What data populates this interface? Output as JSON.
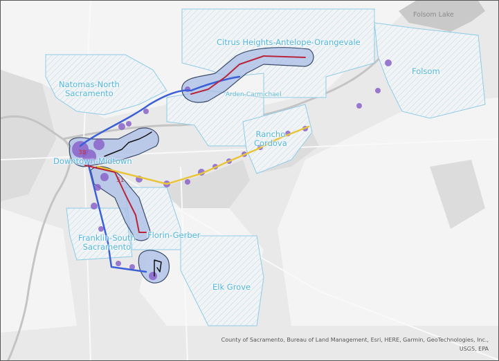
{
  "map": {
    "water_label": "Folsom Lake",
    "areas": [
      {
        "id": "citrus-heights",
        "label": "Citrus Heights-Antelope-Orangevale"
      },
      {
        "id": "natomas",
        "label": "Natomas-North\nSacramento"
      },
      {
        "id": "arden",
        "label": "Arden-Carmichael"
      },
      {
        "id": "folsom",
        "label": "Folsom"
      },
      {
        "id": "rancho",
        "label": "Rancho\nCordova"
      },
      {
        "id": "downtown",
        "label": "Downtown-Midtown"
      },
      {
        "id": "franklin",
        "label": "Franklin-South\nSacramento"
      },
      {
        "id": "florin",
        "label": "Florin-Gerber"
      },
      {
        "id": "elk-grove",
        "label": "Elk Grove"
      }
    ],
    "route_labels": [
      "38",
      "51"
    ],
    "attribution_line1": "County of Sacramento, Bureau of Land Management, Esri, HERE, Garmin, GeoTechnologies, Inc.,",
    "attribution_line2": "USGS, EPA",
    "colors": {
      "boundary": "#7cc3e6",
      "buffer": "#a9bde6",
      "route_blue": "#3a5fd6",
      "route_red": "#b8243a",
      "route_yellow": "#e8c53a",
      "blobs": "#8a63c9"
    }
  }
}
